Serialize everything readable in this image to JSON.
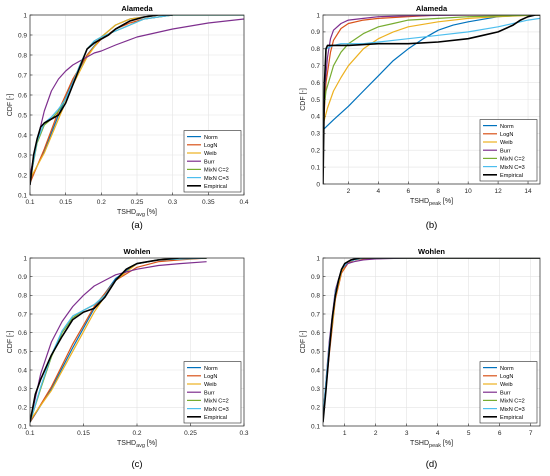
{
  "series_styles": [
    {
      "name": "Norm",
      "color": "#0072BD"
    },
    {
      "name": "LogN",
      "color": "#D95319"
    },
    {
      "name": "Weib",
      "color": "#EDB120"
    },
    {
      "name": "Burr",
      "color": "#7E2F8E"
    },
    {
      "name": "MixN C=2",
      "color": "#77AC30"
    },
    {
      "name": "MixN C=3",
      "color": "#4DBEEE"
    },
    {
      "name": "Empirical",
      "color": "#000000"
    }
  ],
  "chart_data": [
    {
      "type": "line",
      "panel_label": "(a)",
      "title": "Alameda",
      "xlabel": "TSHD",
      "xlabel_sub": "avg",
      "xlabel_unit": " [%]",
      "ylabel": "CDF [-]",
      "xlim": [
        0.1,
        0.4
      ],
      "ylim": [
        0.1,
        1.0
      ],
      "xticks": [
        0.1,
        0.15,
        0.2,
        0.25,
        0.3,
        0.35,
        0.4
      ],
      "xtick_labels": [
        "0.1",
        "0.15",
        "0.2",
        "0.25",
        "0.3",
        "0.35",
        "0.4"
      ],
      "yticks": [
        0.1,
        0.2,
        0.3,
        0.4,
        0.5,
        0.6,
        0.7,
        0.8,
        0.9,
        1.0
      ],
      "ytick_labels": [
        "0.1",
        "0.2",
        "0.3",
        "0.4",
        "0.5",
        "0.6",
        "0.7",
        "0.8",
        "0.9",
        "1"
      ],
      "grid": true,
      "legend": "bottom-right",
      "series": [
        {
          "name": "Norm",
          "x": [
            0.1,
            0.12,
            0.14,
            0.16,
            0.18,
            0.2,
            0.22,
            0.24,
            0.26,
            0.28,
            0.3,
            0.4
          ],
          "y": [
            0.17,
            0.32,
            0.5,
            0.67,
            0.8,
            0.89,
            0.95,
            0.98,
            0.99,
            1.0,
            1.0,
            1.0
          ]
        },
        {
          "name": "LogN",
          "x": [
            0.1,
            0.12,
            0.14,
            0.16,
            0.18,
            0.2,
            0.22,
            0.24,
            0.26,
            0.28,
            0.3,
            0.4
          ],
          "y": [
            0.16,
            0.33,
            0.52,
            0.68,
            0.8,
            0.88,
            0.93,
            0.96,
            0.98,
            0.99,
            1.0,
            1.0
          ]
        },
        {
          "name": "Weib",
          "x": [
            0.1,
            0.12,
            0.14,
            0.16,
            0.18,
            0.2,
            0.22,
            0.24,
            0.26,
            0.28,
            0.3,
            0.4
          ],
          "y": [
            0.18,
            0.31,
            0.48,
            0.65,
            0.79,
            0.89,
            0.95,
            0.98,
            0.99,
            1.0,
            1.0,
            1.0
          ]
        },
        {
          "name": "Burr",
          "x": [
            0.1,
            0.11,
            0.12,
            0.13,
            0.14,
            0.15,
            0.16,
            0.17,
            0.18,
            0.19,
            0.2,
            0.22,
            0.25,
            0.3,
            0.35,
            0.4
          ],
          "y": [
            0.2,
            0.37,
            0.52,
            0.62,
            0.68,
            0.72,
            0.75,
            0.77,
            0.79,
            0.81,
            0.82,
            0.85,
            0.89,
            0.93,
            0.96,
            0.98
          ]
        },
        {
          "name": "MixN C=2",
          "x": [
            0.1,
            0.11,
            0.12,
            0.13,
            0.14,
            0.15,
            0.16,
            0.17,
            0.18,
            0.19,
            0.2,
            0.22,
            0.24,
            0.26,
            0.3,
            0.4
          ],
          "y": [
            0.17,
            0.36,
            0.45,
            0.48,
            0.52,
            0.58,
            0.66,
            0.75,
            0.83,
            0.87,
            0.89,
            0.92,
            0.95,
            0.98,
            1.0,
            1.0
          ]
        },
        {
          "name": "MixN C=3",
          "x": [
            0.1,
            0.11,
            0.12,
            0.13,
            0.14,
            0.15,
            0.16,
            0.17,
            0.18,
            0.19,
            0.2,
            0.22,
            0.24,
            0.26,
            0.3,
            0.4
          ],
          "y": [
            0.17,
            0.37,
            0.46,
            0.49,
            0.53,
            0.58,
            0.66,
            0.75,
            0.83,
            0.87,
            0.89,
            0.92,
            0.95,
            0.98,
            1.0,
            1.0
          ]
        },
        {
          "name": "Empirical",
          "x": [
            0.1,
            0.105,
            0.11,
            0.115,
            0.12,
            0.13,
            0.14,
            0.15,
            0.16,
            0.17,
            0.18,
            0.19,
            0.2,
            0.21,
            0.22,
            0.24,
            0.26,
            0.28,
            0.3
          ],
          "y": [
            0.15,
            0.3,
            0.38,
            0.44,
            0.46,
            0.48,
            0.5,
            0.56,
            0.65,
            0.74,
            0.83,
            0.86,
            0.88,
            0.9,
            0.93,
            0.97,
            0.99,
            1.0,
            1.0
          ]
        }
      ]
    },
    {
      "type": "line",
      "panel_label": "(b)",
      "title": "Alameda",
      "xlabel": "TSHD",
      "xlabel_sub": "peak",
      "xlabel_unit": " [%]",
      "ylabel": "CDF [-]",
      "xlim": [
        0.3,
        14.8
      ],
      "ylim": [
        0.0,
        1.0
      ],
      "xticks": [
        2,
        4,
        6,
        8,
        10,
        12,
        14
      ],
      "xtick_labels": [
        "2",
        "4",
        "6",
        "8",
        "10",
        "12",
        "14"
      ],
      "yticks": [
        0,
        0.1,
        0.2,
        0.3,
        0.4,
        0.5,
        0.6,
        0.7,
        0.8,
        0.9,
        1.0
      ],
      "ytick_labels": [
        "0",
        "0.1",
        "0.2",
        "0.3",
        "0.4",
        "0.5",
        "0.6",
        "0.7",
        "0.8",
        "0.9",
        "1"
      ],
      "grid": true,
      "legend": "bottom-right",
      "series": [
        {
          "name": "Norm",
          "x": [
            0.3,
            1,
            2,
            3,
            4,
            5,
            6,
            7,
            8,
            9,
            10,
            12,
            14,
            14.8
          ],
          "y": [
            0.32,
            0.38,
            0.46,
            0.55,
            0.64,
            0.73,
            0.8,
            0.86,
            0.91,
            0.94,
            0.96,
            0.99,
            1.0,
            1.0
          ]
        },
        {
          "name": "LogN",
          "x": [
            0.3,
            0.5,
            0.8,
            1,
            1.5,
            2,
            3,
            4,
            6,
            8,
            10,
            14.8
          ],
          "y": [
            0.3,
            0.6,
            0.78,
            0.85,
            0.92,
            0.95,
            0.97,
            0.98,
            0.99,
            1.0,
            1.0,
            1.0
          ]
        },
        {
          "name": "Weib",
          "x": [
            0.3,
            0.6,
            1,
            1.5,
            2,
            3,
            4,
            5,
            6,
            8,
            10,
            12,
            14.8
          ],
          "y": [
            0.35,
            0.45,
            0.55,
            0.63,
            0.7,
            0.8,
            0.86,
            0.9,
            0.93,
            0.96,
            0.98,
            0.99,
            1.0
          ]
        },
        {
          "name": "Burr",
          "x": [
            0.3,
            0.4,
            0.6,
            0.8,
            1,
            1.5,
            2,
            3,
            4,
            6,
            10,
            14.8
          ],
          "y": [
            0.35,
            0.55,
            0.75,
            0.86,
            0.91,
            0.95,
            0.97,
            0.98,
            0.99,
            0.995,
            1.0,
            1.0
          ]
        },
        {
          "name": "MixN C=2",
          "x": [
            0.3,
            0.5,
            1,
            1.5,
            2,
            3,
            4,
            5,
            6,
            8,
            10,
            14.8
          ],
          "y": [
            0.4,
            0.55,
            0.7,
            0.78,
            0.83,
            0.89,
            0.93,
            0.95,
            0.97,
            0.98,
            0.99,
            1.0
          ]
        },
        {
          "name": "MixN C=3",
          "x": [
            0.3,
            0.5,
            1,
            1.5,
            2,
            3,
            4,
            6,
            8,
            10,
            12,
            14,
            14.8
          ],
          "y": [
            0.33,
            0.8,
            0.82,
            0.83,
            0.83,
            0.83,
            0.84,
            0.86,
            0.88,
            0.9,
            0.93,
            0.97,
            0.98
          ]
        },
        {
          "name": "Empirical",
          "x": [
            0.3,
            0.4,
            0.5,
            0.6,
            1,
            2,
            4,
            6,
            8,
            10,
            11,
            12,
            13,
            13.5,
            14,
            14.5,
            14.8
          ],
          "y": [
            0.0,
            0.6,
            0.8,
            0.82,
            0.82,
            0.82,
            0.83,
            0.83,
            0.84,
            0.86,
            0.88,
            0.9,
            0.94,
            0.97,
            0.99,
            1.0,
            1.0
          ]
        }
      ]
    },
    {
      "type": "line",
      "panel_label": "(c)",
      "title": "Wohlen",
      "xlabel": "TSHD",
      "xlabel_sub": "avg",
      "xlabel_unit": " [%]",
      "ylabel": "CDF [-]",
      "xlim": [
        0.1,
        0.3
      ],
      "ylim": [
        0.1,
        1.0
      ],
      "xticks": [
        0.1,
        0.15,
        0.2,
        0.25,
        0.3
      ],
      "xtick_labels": [
        "0.1",
        "0.15",
        "0.2",
        "0.25",
        "0.3"
      ],
      "yticks": [
        0.1,
        0.2,
        0.3,
        0.4,
        0.5,
        0.6,
        0.7,
        0.8,
        0.9,
        1.0
      ],
      "ytick_labels": [
        "0.1",
        "0.2",
        "0.3",
        "0.4",
        "0.5",
        "0.6",
        "0.7",
        "0.8",
        "0.9",
        "1"
      ],
      "grid": true,
      "legend": "bottom-right",
      "series": [
        {
          "name": "Norm",
          "x": [
            0.1,
            0.12,
            0.14,
            0.16,
            0.18,
            0.2,
            0.22,
            0.24,
            0.265
          ],
          "y": [
            0.12,
            0.3,
            0.52,
            0.73,
            0.89,
            0.97,
            0.99,
            1.0,
            1.0
          ]
        },
        {
          "name": "LogN",
          "x": [
            0.1,
            0.12,
            0.14,
            0.16,
            0.18,
            0.2,
            0.22,
            0.24,
            0.265
          ],
          "y": [
            0.12,
            0.31,
            0.54,
            0.74,
            0.88,
            0.95,
            0.98,
            0.99,
            1.0
          ]
        },
        {
          "name": "Weib",
          "x": [
            0.1,
            0.12,
            0.14,
            0.16,
            0.18,
            0.2,
            0.22,
            0.24,
            0.265
          ],
          "y": [
            0.13,
            0.29,
            0.5,
            0.71,
            0.88,
            0.97,
            0.99,
            1.0,
            1.0
          ]
        },
        {
          "name": "Burr",
          "x": [
            0.1,
            0.11,
            0.12,
            0.13,
            0.14,
            0.15,
            0.16,
            0.17,
            0.18,
            0.2,
            0.22,
            0.24,
            0.265
          ],
          "y": [
            0.12,
            0.38,
            0.55,
            0.66,
            0.74,
            0.8,
            0.85,
            0.88,
            0.91,
            0.94,
            0.96,
            0.97,
            0.98
          ]
        },
        {
          "name": "MixN C=2",
          "x": [
            0.1,
            0.11,
            0.12,
            0.13,
            0.14,
            0.15,
            0.16,
            0.17,
            0.18,
            0.19,
            0.2,
            0.22,
            0.265
          ],
          "y": [
            0.12,
            0.3,
            0.47,
            0.6,
            0.68,
            0.72,
            0.75,
            0.8,
            0.88,
            0.94,
            0.97,
            0.99,
            1.0
          ]
        },
        {
          "name": "MixN C=3",
          "x": [
            0.1,
            0.11,
            0.12,
            0.13,
            0.14,
            0.15,
            0.16,
            0.17,
            0.18,
            0.19,
            0.2,
            0.22,
            0.265
          ],
          "y": [
            0.12,
            0.31,
            0.48,
            0.61,
            0.69,
            0.72,
            0.75,
            0.8,
            0.88,
            0.94,
            0.97,
            0.99,
            1.0
          ]
        },
        {
          "name": "Empirical",
          "x": [
            0.1,
            0.105,
            0.11,
            0.12,
            0.13,
            0.14,
            0.15,
            0.16,
            0.17,
            0.18,
            0.19,
            0.2,
            0.21,
            0.22,
            0.24,
            0.265
          ],
          "y": [
            0.12,
            0.27,
            0.35,
            0.48,
            0.58,
            0.67,
            0.71,
            0.73,
            0.79,
            0.88,
            0.94,
            0.97,
            0.98,
            0.99,
            1.0,
            1.0
          ]
        }
      ]
    },
    {
      "type": "line",
      "panel_label": "(d)",
      "title": "Wohlen",
      "xlabel": "TSHD",
      "xlabel_sub": "peak",
      "xlabel_unit": " [%]",
      "ylabel": "CDF [-]",
      "xlim": [
        0.3,
        7.3
      ],
      "ylim": [
        0.1,
        1.0
      ],
      "xticks": [
        1,
        2,
        3,
        4,
        5,
        6,
        7
      ],
      "xtick_labels": [
        "1",
        "2",
        "3",
        "4",
        "5",
        "6",
        "7"
      ],
      "yticks": [
        0.1,
        0.2,
        0.3,
        0.4,
        0.5,
        0.6,
        0.7,
        0.8,
        0.9,
        1.0
      ],
      "ytick_labels": [
        "0.1",
        "0.2",
        "0.3",
        "0.4",
        "0.5",
        "0.6",
        "0.7",
        "0.8",
        "0.9",
        "1"
      ],
      "grid": true,
      "legend": "bottom-right",
      "series": [
        {
          "name": "Norm",
          "x": [
            0.3,
            0.5,
            0.7,
            0.9,
            1.1,
            1.3,
            1.6,
            2,
            3,
            7.3
          ],
          "y": [
            0.15,
            0.5,
            0.8,
            0.94,
            0.98,
            0.995,
            1.0,
            1.0,
            1.0,
            1.0
          ]
        },
        {
          "name": "LogN",
          "x": [
            0.3,
            0.5,
            0.7,
            0.9,
            1.1,
            1.3,
            1.6,
            2,
            3,
            7.3
          ],
          "y": [
            0.14,
            0.48,
            0.78,
            0.92,
            0.97,
            0.99,
            0.995,
            1.0,
            1.0,
            1.0
          ]
        },
        {
          "name": "Weib",
          "x": [
            0.3,
            0.5,
            0.7,
            0.9,
            1.1,
            1.3,
            1.6,
            2,
            3,
            7.3
          ],
          "y": [
            0.16,
            0.5,
            0.79,
            0.93,
            0.98,
            0.99,
            1.0,
            1.0,
            1.0,
            1.0
          ]
        },
        {
          "name": "Burr",
          "x": [
            0.3,
            0.5,
            0.7,
            0.9,
            1.1,
            1.3,
            1.6,
            2,
            3,
            7.3
          ],
          "y": [
            0.15,
            0.55,
            0.83,
            0.94,
            0.97,
            0.98,
            0.99,
            0.995,
            1.0,
            1.0
          ]
        },
        {
          "name": "MixN C=2",
          "x": [
            0.3,
            0.5,
            0.7,
            0.9,
            1.1,
            1.3,
            1.6,
            2,
            3,
            7.3
          ],
          "y": [
            0.15,
            0.52,
            0.81,
            0.94,
            0.98,
            0.99,
            1.0,
            1.0,
            1.0,
            1.0
          ]
        },
        {
          "name": "MixN C=3",
          "x": [
            0.3,
            0.5,
            0.7,
            0.9,
            1.1,
            1.3,
            1.6,
            2,
            3,
            7.3
          ],
          "y": [
            0.16,
            0.53,
            0.82,
            0.94,
            0.98,
            0.99,
            1.0,
            1.0,
            1.0,
            1.0
          ]
        },
        {
          "name": "Empirical",
          "x": [
            0.3,
            0.4,
            0.5,
            0.6,
            0.7,
            0.8,
            0.9,
            1.0,
            1.2,
            1.5,
            2,
            7.3
          ],
          "y": [
            0.12,
            0.3,
            0.5,
            0.68,
            0.8,
            0.88,
            0.94,
            0.97,
            0.99,
            1.0,
            1.0,
            1.0
          ]
        }
      ]
    }
  ]
}
